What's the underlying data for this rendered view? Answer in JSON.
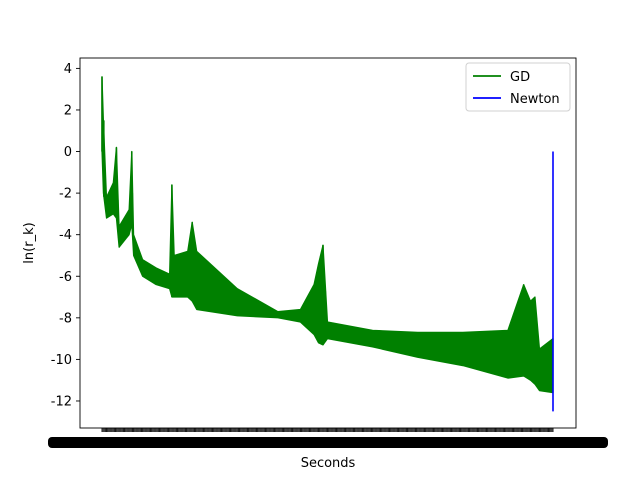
{
  "chart_data": {
    "type": "line",
    "title": "",
    "xlabel": "Seconds",
    "ylabel": "ln(r_k)",
    "ylim": [
      -13.3,
      4.5
    ],
    "xlim": [
      0,
      1
    ],
    "yticks": [
      4,
      2,
      0,
      -2,
      -4,
      -6,
      -8,
      -10,
      -12
    ],
    "xtick_labels_overlapping": true,
    "grid": false,
    "legend_position": "top-right",
    "series": [
      {
        "name": "GD",
        "color": "#008000",
        "envelope": [
          {
            "x": 0.0,
            "upper": 3.6,
            "lower": 0.0
          },
          {
            "x": 0.003,
            "upper": 1.5,
            "lower": -2.0
          },
          {
            "x": 0.01,
            "upper": -2.2,
            "lower": -3.2
          },
          {
            "x": 0.025,
            "upper": -1.5,
            "lower": -3.0
          },
          {
            "x": 0.032,
            "upper": 0.2,
            "lower": -3.2
          },
          {
            "x": 0.038,
            "upper": -3.6,
            "lower": -4.6
          },
          {
            "x": 0.06,
            "upper": -2.8,
            "lower": -4.0
          },
          {
            "x": 0.066,
            "upper": 0.0,
            "lower": -3.5
          },
          {
            "x": 0.07,
            "upper": -4.0,
            "lower": -5.0
          },
          {
            "x": 0.09,
            "upper": -5.2,
            "lower": -6.0
          },
          {
            "x": 0.12,
            "upper": -5.6,
            "lower": -6.4
          },
          {
            "x": 0.15,
            "upper": -5.9,
            "lower": -6.6
          },
          {
            "x": 0.155,
            "upper": -1.6,
            "lower": -7.0
          },
          {
            "x": 0.16,
            "upper": -5.0,
            "lower": -7.0
          },
          {
            "x": 0.19,
            "upper": -4.8,
            "lower": -7.0
          },
          {
            "x": 0.2,
            "upper": -3.4,
            "lower": -7.2
          },
          {
            "x": 0.21,
            "upper": -4.8,
            "lower": -7.6
          },
          {
            "x": 0.3,
            "upper": -6.6,
            "lower": -7.9
          },
          {
            "x": 0.39,
            "upper": -7.7,
            "lower": -8.0
          },
          {
            "x": 0.44,
            "upper": -7.6,
            "lower": -8.2
          },
          {
            "x": 0.47,
            "upper": -6.4,
            "lower": -8.8
          },
          {
            "x": 0.48,
            "upper": -5.4,
            "lower": -9.2
          },
          {
            "x": 0.49,
            "upper": -4.5,
            "lower": -9.3
          },
          {
            "x": 0.5,
            "upper": -8.2,
            "lower": -9.0
          },
          {
            "x": 0.6,
            "upper": -8.6,
            "lower": -9.4
          },
          {
            "x": 0.7,
            "upper": -8.7,
            "lower": -9.9
          },
          {
            "x": 0.8,
            "upper": -8.7,
            "lower": -10.3
          },
          {
            "x": 0.9,
            "upper": -8.6,
            "lower": -10.9
          },
          {
            "x": 0.935,
            "upper": -6.4,
            "lower": -10.8
          },
          {
            "x": 0.95,
            "upper": -7.2,
            "lower": -11.0
          },
          {
            "x": 0.96,
            "upper": -7.0,
            "lower": -11.2
          },
          {
            "x": 0.97,
            "upper": -9.5,
            "lower": -11.5
          },
          {
            "x": 1.0,
            "upper": -9.0,
            "lower": -11.6
          }
        ],
        "spikes": [
          {
            "x": 0.0,
            "top": 3.6
          },
          {
            "x": 0.004,
            "top": 1.5
          },
          {
            "x": 0.032,
            "top": 0.2
          },
          {
            "x": 0.066,
            "top": 0.0
          },
          {
            "x": 0.155,
            "top": -1.6
          },
          {
            "x": 0.2,
            "top": -3.4
          },
          {
            "x": 0.49,
            "top": -4.5
          },
          {
            "x": 0.935,
            "top": -6.4
          }
        ]
      },
      {
        "name": "Newton",
        "color": "#0000ff",
        "points": [
          {
            "x": 1.0,
            "y": 0.0
          },
          {
            "x": 1.0,
            "y": -12.5
          }
        ]
      }
    ]
  }
}
